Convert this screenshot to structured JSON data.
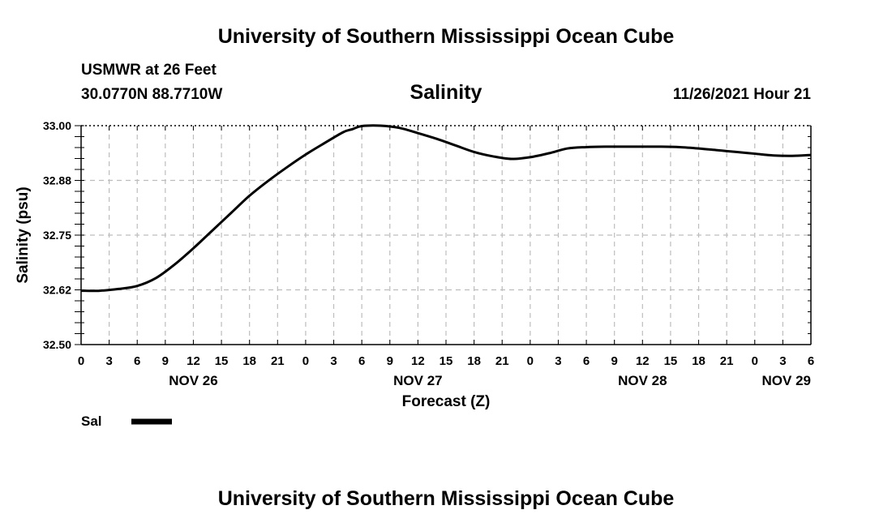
{
  "header": {
    "title": "University of Southern Mississippi Ocean Cube",
    "station": "USMWR at 26 Feet",
    "coords": "30.0770N  88.7710W",
    "datetime": "11/26/2021 Hour 21"
  },
  "footer": {
    "title": "University of Southern Mississippi Ocean Cube"
  },
  "chart_data": {
    "type": "line",
    "title": "Salinity",
    "xlabel": "Forecast (Z)",
    "ylabel": "Salinity (psu)",
    "ylim": [
      32.5,
      33.0
    ],
    "yticks": [
      "33.00",
      "32.88",
      "32.75",
      "32.62",
      "32.50"
    ],
    "ytick_values": [
      33.0,
      32.875,
      32.75,
      32.625,
      32.5
    ],
    "x_unit": "hours since NOV 26 00Z",
    "xlim": [
      0,
      78
    ],
    "xticks": [
      "0",
      "3",
      "6",
      "9",
      "12",
      "15",
      "18",
      "21",
      "0",
      "3",
      "6",
      "9",
      "12",
      "15",
      "18",
      "21",
      "0",
      "3",
      "6",
      "9",
      "12",
      "15",
      "18",
      "21",
      "0",
      "3",
      "6"
    ],
    "date_labels": [
      {
        "label": "NOV 26",
        "hour": 12
      },
      {
        "label": "NOV 27",
        "hour": 36
      },
      {
        "label": "NOV 28",
        "hour": 60
      },
      {
        "label": "NOV 29",
        "hour": 78
      }
    ],
    "grid": true,
    "legend_position": "bottom-left",
    "series": [
      {
        "name": "Sal",
        "color": "#000000",
        "x": [
          0,
          2,
          4,
          6,
          8,
          10,
          12,
          14,
          16,
          18,
          20,
          22,
          24,
          26,
          28,
          29,
          30,
          32,
          34,
          36,
          38,
          40,
          42,
          44,
          46,
          48,
          50,
          52,
          54,
          56,
          58,
          60,
          62,
          64,
          66,
          68,
          70,
          72,
          74,
          76,
          78
        ],
        "y": [
          32.623,
          32.623,
          32.627,
          32.634,
          32.652,
          32.683,
          32.72,
          32.76,
          32.8,
          32.84,
          32.874,
          32.905,
          32.934,
          32.96,
          32.985,
          32.992,
          32.999,
          33.0,
          32.995,
          32.983,
          32.97,
          32.955,
          32.94,
          32.93,
          32.924,
          32.928,
          32.937,
          32.948,
          32.951,
          32.952,
          32.952,
          32.952,
          32.952,
          32.951,
          32.948,
          32.944,
          32.94,
          32.936,
          32.932,
          32.931,
          32.933
        ]
      }
    ]
  }
}
